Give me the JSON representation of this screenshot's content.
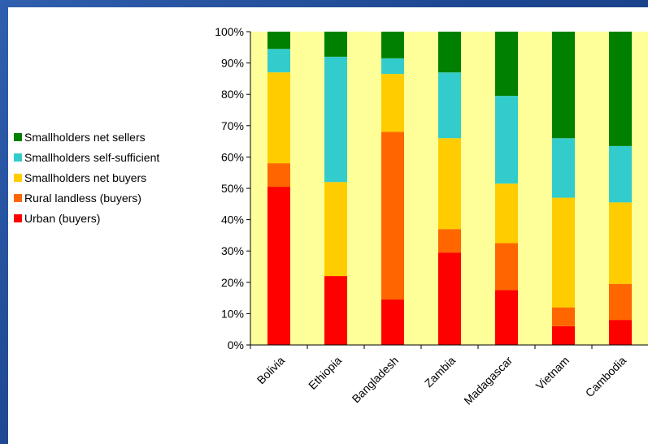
{
  "chart_data": {
    "type": "bar",
    "stacked": true,
    "percent": true,
    "categories": [
      "Bolivia",
      "Ethiopia",
      "Bangladesh",
      "Zambia",
      "Madagascar",
      "Vietnam",
      "Cambodia"
    ],
    "series": [
      {
        "name": "Urban (buyers)",
        "color": "#ff0000",
        "values": [
          50.5,
          22,
          14.5,
          29.5,
          17.5,
          6,
          8
        ]
      },
      {
        "name": "Rural landless (buyers)",
        "color": "#ff6600",
        "values": [
          7.5,
          0,
          53.5,
          7.5,
          15,
          6,
          11.5
        ]
      },
      {
        "name": "Smallholders net buyers",
        "color": "#ffcc00",
        "values": [
          29,
          30,
          18.5,
          29,
          19,
          35,
          26
        ]
      },
      {
        "name": "Smallholders self-sufficient",
        "color": "#33cccc",
        "values": [
          7.5,
          40,
          5,
          21,
          28,
          19,
          18
        ]
      },
      {
        "name": "Smallholders net sellers",
        "color": "#008000",
        "values": [
          5.5,
          8,
          8.5,
          13,
          20.5,
          34,
          36.5
        ]
      }
    ],
    "ylim": [
      0,
      100
    ],
    "yticks": [
      "0%",
      "10%",
      "20%",
      "30%",
      "40%",
      "50%",
      "60%",
      "70%",
      "80%",
      "90%",
      "100%"
    ],
    "plot_background": "#ffff99",
    "legend_position": "left",
    "title": "",
    "xlabel": "",
    "ylabel": ""
  }
}
